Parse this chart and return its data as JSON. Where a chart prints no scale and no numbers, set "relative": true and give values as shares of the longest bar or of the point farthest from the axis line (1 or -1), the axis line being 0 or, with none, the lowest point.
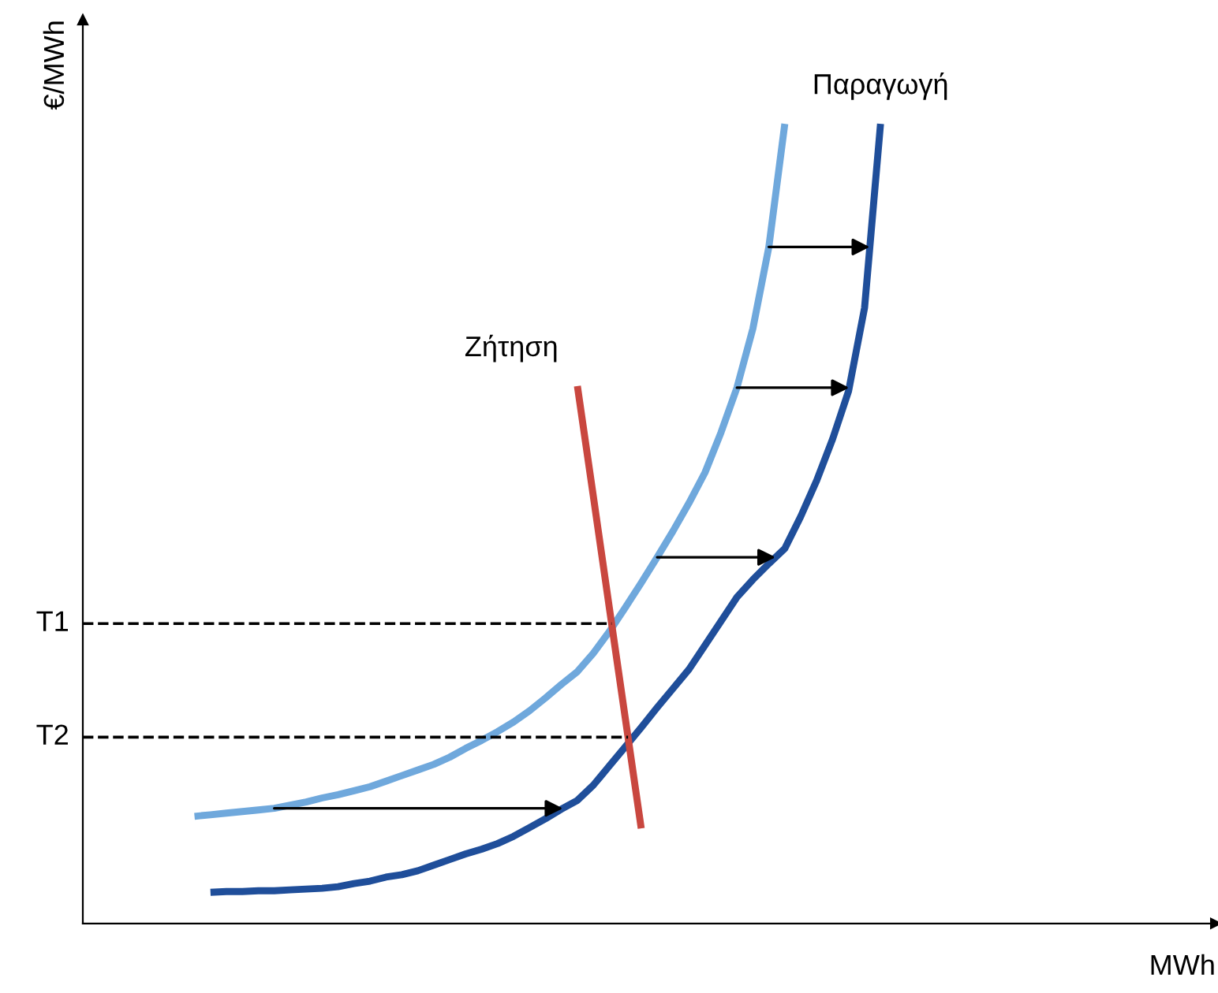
{
  "chart_data": {
    "type": "line",
    "relative": true,
    "xlabel": "MWh",
    "ylabel": "€/MWh",
    "marker": "none",
    "line_style": "solid",
    "categories": [
      null,
      null,
      null,
      null,
      null,
      null,
      null,
      null,
      null,
      null,
      null,
      null,
      null,
      null,
      null,
      null,
      null,
      null,
      null,
      null,
      null,
      null,
      null,
      null,
      null,
      null,
      null,
      null,
      null,
      null,
      null,
      null,
      null,
      null,
      null,
      null,
      null,
      null,
      null,
      null,
      null,
      null,
      null,
      null,
      null,
      null,
      null,
      null,
      null,
      null,
      null,
      null,
      null,
      null,
      null,
      null,
      null,
      null,
      null,
      null,
      null,
      null,
      null,
      null,
      null,
      null,
      null,
      null,
      null,
      null,
      null,
      null
    ],
    "series": [
      {
        "color": "#6fa8dc",
        "values": [
          null,
          null,
          null,
          null,
          null,
          null,
          null,
          0.134,
          0.136,
          0.138,
          0.14,
          0.142,
          0.144,
          0.148,
          0.152,
          0.157,
          0.161,
          0.166,
          0.171,
          0.178,
          0.185,
          0.192,
          0.199,
          0.208,
          0.219,
          0.229,
          0.24,
          0.252,
          0.266,
          0.282,
          0.299,
          0.315,
          0.338,
          0.365,
          0.395,
          0.426,
          0.458,
          0.491,
          0.526,
          0.564,
          0.614,
          0.67,
          0.744,
          0.846,
          1.0,
          null,
          null,
          null,
          null,
          null,
          null,
          null,
          null,
          null,
          null,
          null,
          null,
          null,
          null,
          null,
          null,
          null,
          null,
          null,
          null,
          null,
          null,
          null,
          null,
          null,
          null,
          null
        ]
      },
      {
        "color": "#1f4e9a",
        "values": [
          null,
          null,
          null,
          null,
          null,
          null,
          null,
          null,
          0.039,
          0.04,
          0.04,
          0.041,
          0.041,
          0.042,
          0.043,
          0.044,
          0.046,
          0.05,
          0.053,
          0.058,
          0.061,
          0.066,
          0.073,
          0.08,
          0.087,
          0.093,
          0.1,
          0.109,
          0.12,
          0.131,
          0.143,
          0.154,
          0.173,
          0.197,
          0.221,
          0.245,
          0.27,
          0.294,
          0.318,
          0.348,
          0.378,
          0.408,
          0.43,
          0.45,
          0.469,
          0.509,
          0.554,
          0.606,
          0.666,
          0.77,
          1.0,
          null,
          null,
          null,
          null,
          null,
          null,
          null,
          null,
          null,
          null,
          null,
          null,
          null,
          null,
          null,
          null,
          null,
          null,
          null,
          null,
          null
        ]
      },
      {
        "color": "#c9473f",
        "values": [
          null,
          null,
          null,
          null,
          null,
          null,
          null,
          null,
          null,
          null,
          null,
          null,
          null,
          null,
          null,
          null,
          null,
          null,
          null,
          null,
          null,
          null,
          null,
          null,
          null,
          null,
          null,
          null,
          null,
          null,
          null,
          0.672,
          0.534,
          0.395,
          0.257,
          0.119,
          null,
          null,
          null,
          null,
          null,
          null,
          null,
          null,
          null,
          null,
          null,
          null,
          null,
          null,
          null,
          null,
          null,
          null,
          null,
          null,
          null,
          null,
          null,
          null,
          null,
          null,
          null,
          null,
          null,
          null,
          null,
          null,
          null,
          null,
          null,
          null
        ]
      }
    ],
    "ref_lines": [
      {
        "axis": "y",
        "value": 0.375,
        "label": "T1",
        "line_style": "dashed",
        "color": "#000000"
      },
      {
        "axis": "y",
        "value": 0.233,
        "label": "T2",
        "line_style": "dashed",
        "color": "#000000"
      }
    ],
    "annotations": [
      "Παραγωγή",
      "Ζήτηση"
    ]
  }
}
